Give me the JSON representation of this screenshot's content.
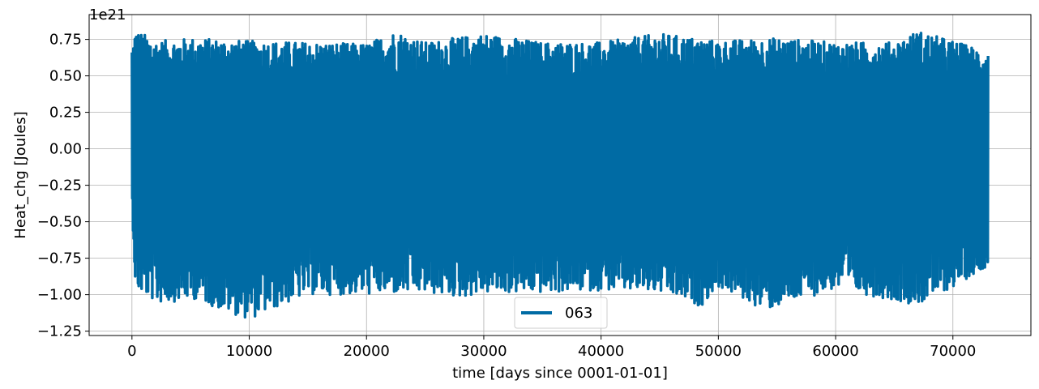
{
  "chart_data": {
    "type": "line",
    "title": "",
    "xlabel": "time [days since 0001-01-01]",
    "ylabel": "Heat_chg [Joules]",
    "y_offset_text": "1e21",
    "xlim": [
      -3650,
      76650
    ],
    "ylim": [
      -1.28e+21,
      9.2e+20
    ],
    "xticks": [
      0,
      10000,
      20000,
      30000,
      40000,
      50000,
      60000,
      70000
    ],
    "xtick_labels": [
      "0",
      "10000",
      "20000",
      "30000",
      "40000",
      "50000",
      "60000",
      "70000"
    ],
    "yticks": [
      -1.25e+21,
      -1e+21,
      -7.5e+20,
      -5e+20,
      -2.5e+20,
      0,
      2.5e+20,
      5e+20,
      7.5e+20
    ],
    "ytick_labels": [
      "−1.25",
      "−1.00",
      "−0.75",
      "−0.50",
      "−0.25",
      "0.00",
      "0.25",
      "0.50",
      "0.75"
    ],
    "grid": true,
    "legend_position": "lower-center",
    "series": [
      {
        "name": "063",
        "color": "#006ba4",
        "x_range": [
          0,
          73000
        ],
        "upper_envelope": [
          [
            0,
            6.6e+20
          ],
          [
            200,
            8.2e+20
          ],
          [
            2200,
            7.4e+20
          ],
          [
            5200,
            7.6e+20
          ],
          [
            10000,
            7.4e+20
          ],
          [
            15000,
            7.3e+20
          ],
          [
            20000,
            7.2e+20
          ],
          [
            22500,
            8.1e+20
          ],
          [
            25000,
            7.3e+20
          ],
          [
            27500,
            7.6e+20
          ],
          [
            30000,
            7.9e+20
          ],
          [
            35000,
            7.3e+20
          ],
          [
            40000,
            7.3e+20
          ],
          [
            45000,
            7.9e+20
          ],
          [
            50000,
            7.4e+20
          ],
          [
            55000,
            7.6e+20
          ],
          [
            60000,
            7.3e+20
          ],
          [
            65000,
            7.3e+20
          ],
          [
            67000,
            8.1e+20
          ],
          [
            70000,
            7.4e+20
          ],
          [
            73000,
            6.7e+20
          ]
        ],
        "lower_envelope": [
          [
            0,
            -3.8e+20
          ],
          [
            300,
            -9.7e+20
          ],
          [
            2200,
            -1.06e+21
          ],
          [
            5500,
            -1.03e+21
          ],
          [
            7400,
            -1.1e+21
          ],
          [
            10000,
            -1.17e+21
          ],
          [
            15000,
            -1e+21
          ],
          [
            20000,
            -1e+21
          ],
          [
            25000,
            -9.9e+20
          ],
          [
            28000,
            -1.02e+21
          ],
          [
            30000,
            -9.9e+20
          ],
          [
            35000,
            -9.9e+20
          ],
          [
            40000,
            -9.7e+20
          ],
          [
            45000,
            -9.9e+20
          ],
          [
            48500,
            -1.08e+21
          ],
          [
            50000,
            -9.5e+20
          ],
          [
            54000,
            -1.11e+21
          ],
          [
            60000,
            -9.6e+20
          ],
          [
            67000,
            -1.07e+21
          ],
          [
            70000,
            -9.5e+20
          ],
          [
            73000,
            -8e+20
          ]
        ]
      }
    ]
  }
}
